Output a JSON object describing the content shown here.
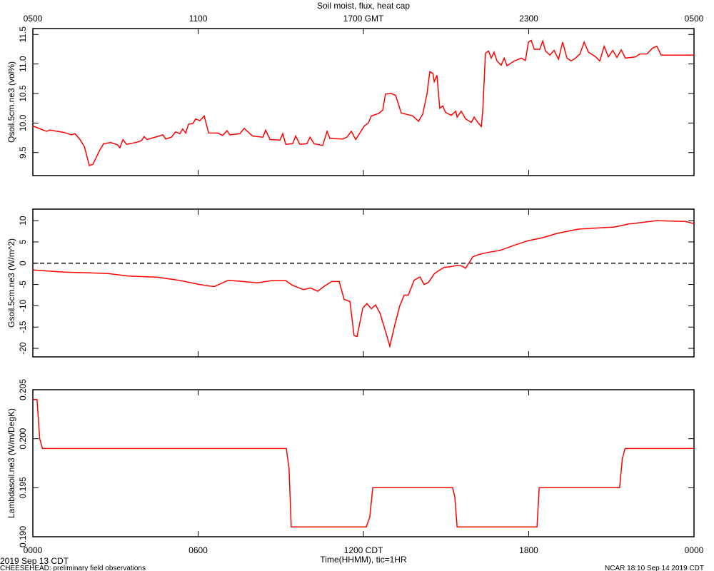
{
  "chart_data": [
    {
      "type": "line",
      "title": "Soil moist, flux, heat cap",
      "ylabel": "Qsoil.5cm.ne3 (vol%)",
      "xlim": [
        0,
        24
      ],
      "ylim": [
        9.11,
        11.6
      ],
      "top_xticks": [
        {
          "value": 0,
          "label": "0500"
        },
        {
          "value": 6,
          "label": "1100"
        },
        {
          "value": 12,
          "label": "1700 GMT"
        },
        {
          "value": 18,
          "label": "2300"
        },
        {
          "value": 24,
          "label": "0500"
        }
      ],
      "yticks": [
        9.5,
        {
          "value": 10,
          "label": "10.0"
        },
        10.5,
        {
          "value": 11,
          "label": "11.0"
        },
        11.5
      ],
      "series": [
        {
          "color": "#ff0000",
          "x": [
            0.0,
            0.49,
            0.62,
            1.14,
            1.4,
            1.53,
            1.71,
            1.87,
            2.05,
            2.18,
            2.44,
            2.57,
            2.83,
            3.08,
            3.16,
            3.27,
            3.4,
            3.73,
            3.94,
            4.04,
            4.15,
            4.51,
            4.72,
            4.82,
            5.03,
            5.18,
            5.34,
            5.44,
            5.55,
            5.65,
            5.81,
            5.91,
            6.06,
            6.22,
            6.38,
            6.71,
            6.89,
            7.05,
            7.15,
            7.52,
            7.67,
            7.88,
            7.98,
            8.35,
            8.45,
            8.61,
            8.97,
            9.07,
            9.18,
            9.43,
            9.54,
            9.69,
            9.95,
            10.06,
            10.21,
            10.52,
            10.68,
            10.78,
            11.25,
            11.4,
            11.56,
            11.72,
            12.03,
            12.18,
            12.29,
            12.55,
            12.7,
            12.8,
            13.01,
            13.17,
            13.37,
            13.79,
            14.0,
            14.15,
            14.31,
            14.41,
            14.52,
            14.57,
            14.67,
            14.77,
            14.88,
            14.98,
            15.19,
            15.35,
            15.4,
            15.55,
            15.71,
            15.92,
            16.02,
            16.17,
            16.28,
            16.33,
            16.43,
            16.54,
            16.64,
            16.74,
            16.85,
            17.0,
            17.11,
            17.21,
            17.47,
            17.73,
            17.88,
            17.99,
            18.09,
            18.2,
            18.4,
            18.51,
            18.61,
            18.77,
            18.92,
            19.08,
            19.23,
            19.39,
            19.54,
            19.7,
            19.86,
            20.01,
            20.17,
            20.43,
            20.58,
            20.74,
            20.89,
            21.05,
            21.2,
            21.36,
            21.51,
            21.88,
            22.03,
            22.29,
            22.5,
            22.65,
            22.81,
            24.0
          ],
          "values": [
            9.95,
            9.86,
            9.88,
            9.84,
            9.8,
            9.82,
            9.72,
            9.6,
            9.28,
            9.3,
            9.55,
            9.65,
            9.67,
            9.63,
            9.58,
            9.72,
            9.64,
            9.67,
            9.7,
            9.77,
            9.72,
            9.77,
            9.8,
            9.73,
            9.76,
            9.85,
            9.82,
            9.9,
            9.83,
            9.98,
            9.99,
            10.07,
            10.04,
            10.12,
            9.83,
            9.83,
            9.79,
            9.87,
            9.8,
            9.82,
            9.91,
            9.82,
            9.78,
            9.76,
            9.88,
            9.72,
            9.71,
            9.82,
            9.64,
            9.65,
            9.78,
            9.64,
            9.65,
            9.76,
            9.65,
            9.62,
            9.86,
            9.74,
            9.73,
            9.76,
            9.86,
            9.72,
            9.95,
            10.0,
            10.12,
            10.16,
            10.22,
            10.49,
            10.5,
            10.47,
            10.17,
            10.12,
            10.03,
            10.15,
            10.5,
            10.87,
            10.84,
            10.7,
            10.81,
            10.25,
            10.29,
            10.18,
            10.13,
            10.2,
            10.1,
            10.2,
            10.07,
            10.01,
            10.1,
            10.0,
            9.94,
            10.2,
            11.18,
            11.22,
            11.1,
            11.2,
            11.05,
            10.98,
            11.1,
            10.97,
            11.05,
            11.1,
            11.06,
            11.37,
            11.4,
            11.25,
            11.25,
            11.39,
            11.22,
            11.15,
            11.23,
            11.08,
            11.37,
            11.1,
            11.05,
            11.1,
            11.17,
            11.37,
            11.2,
            11.12,
            11.05,
            11.3,
            11.12,
            11.23,
            11.11,
            11.24,
            11.1,
            11.12,
            11.17,
            11.17,
            11.27,
            11.3,
            11.15,
            11.15
          ]
        }
      ]
    },
    {
      "type": "line",
      "ylabel": "Gsoil.5cm.ne3 (W/m^2)",
      "xlim": [
        0,
        24
      ],
      "ylim": [
        -22,
        12.7
      ],
      "yticks": [
        -20,
        -15,
        -10,
        -5,
        0,
        5,
        10
      ],
      "reference_line": 0,
      "series": [
        {
          "color": "#ff0000",
          "x": [
            0,
            1.14,
            2.7,
            3.47,
            4.51,
            5.29,
            6.06,
            6.58,
            7.1,
            7.62,
            8.14,
            8.66,
            9.18,
            9.43,
            9.82,
            10.08,
            10.34,
            10.6,
            10.86,
            11.12,
            11.3,
            11.51,
            11.66,
            11.77,
            11.98,
            12.13,
            12.29,
            12.44,
            12.6,
            12.8,
            12.96,
            13.12,
            13.32,
            13.48,
            13.63,
            13.84,
            14.05,
            14.2,
            14.36,
            14.57,
            14.72,
            14.93,
            15.19,
            15.4,
            15.55,
            15.71,
            15.97,
            16.17,
            16.49,
            16.95,
            17.47,
            17.99,
            18.51,
            19.03,
            19.8,
            20.58,
            21.1,
            21.62,
            22.14,
            22.65,
            23.17,
            23.69,
            24
          ],
          "values": [
            -1.6,
            -2.1,
            -2.4,
            -3.0,
            -3.3,
            -4.0,
            -5.0,
            -5.5,
            -4.0,
            -4.3,
            -4.6,
            -4.1,
            -4.1,
            -5.2,
            -6.2,
            -5.8,
            -6.6,
            -5.3,
            -4.3,
            -4.3,
            -8.5,
            -9.0,
            -17.0,
            -17.2,
            -10.5,
            -9.5,
            -10.7,
            -9.8,
            -11.7,
            -16.0,
            -19.5,
            -15.0,
            -10.0,
            -7.5,
            -7.5,
            -4.0,
            -3.2,
            -5.0,
            -4.5,
            -2.5,
            -1.8,
            -1.0,
            -0.8,
            -0.5,
            -0.6,
            -1.2,
            1.5,
            2.0,
            2.5,
            3.0,
            4.2,
            5.3,
            6.0,
            7.0,
            8.0,
            8.3,
            8.5,
            9.2,
            9.6,
            10.0,
            9.9,
            9.8,
            9.3
          ]
        }
      ]
    },
    {
      "type": "line",
      "ylabel": "Lambdasoil.ne3 (W/m/DegK)",
      "xlabel": "Time(HHMM), tic=1HR",
      "xlim": [
        0,
        24
      ],
      "ylim": [
        0.19,
        0.205
      ],
      "xticks": [
        {
          "value": 0,
          "label": "0000"
        },
        {
          "value": 6,
          "label": "0600"
        },
        {
          "value": 12,
          "label": "1200 CDT"
        },
        {
          "value": 18,
          "label": "1800"
        },
        {
          "value": 24,
          "label": "0000"
        }
      ],
      "yticks": [
        {
          "value": 0.19,
          "label": "0.190"
        },
        0.195,
        {
          "value": 0.2,
          "label": "0.200"
        },
        0.205
      ],
      "series": [
        {
          "color": "#ff0000",
          "x": [
            0,
            0.15,
            0.25,
            0.35,
            9.2,
            9.3,
            9.38,
            12.1,
            12.23,
            12.34,
            15.24,
            15.32,
            15.4,
            18.3,
            18.38,
            21.3,
            21.4,
            21.5,
            24
          ],
          "values": [
            0.204,
            0.204,
            0.2,
            0.199,
            0.199,
            0.197,
            0.191,
            0.191,
            0.192,
            0.195,
            0.195,
            0.194,
            0.191,
            0.191,
            0.195,
            0.195,
            0.198,
            0.199,
            0.199
          ]
        }
      ]
    }
  ],
  "footer": {
    "date": "2019 Sep 13 CDT",
    "source": "CHEESEHEAD: preliminary field observations",
    "credit": "NCAR 18:10 Sep 14 2019 CDT"
  }
}
